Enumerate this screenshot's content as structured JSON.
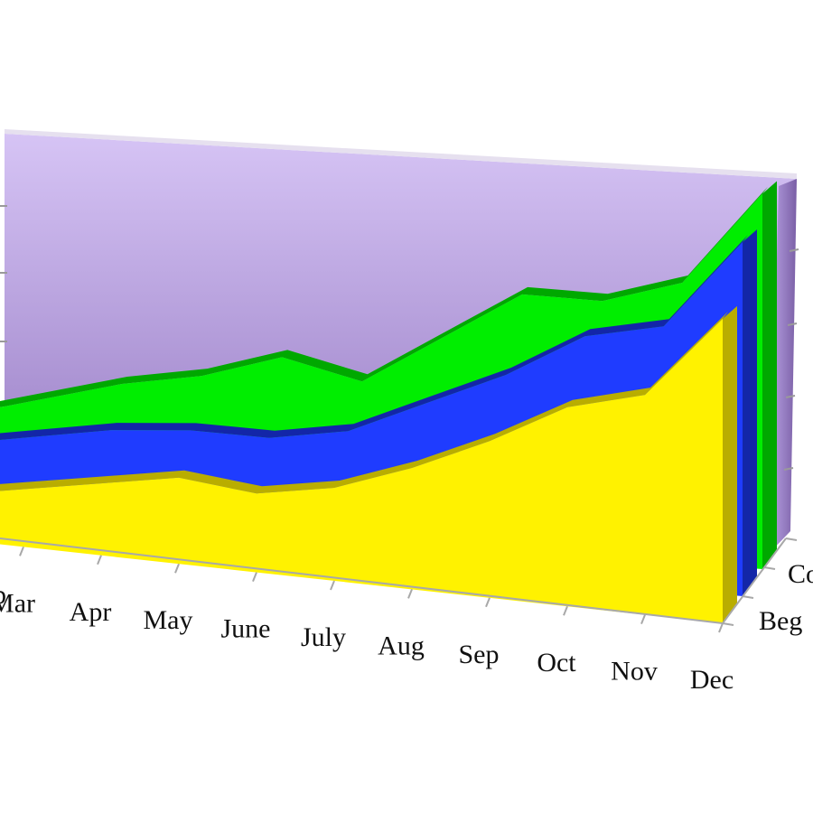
{
  "chart_data": {
    "type": "area",
    "style": "3d",
    "categories": [
      "Feb",
      "Mar",
      "Apr",
      "May",
      "June",
      "July",
      "Aug",
      "Sep",
      "Oct",
      "Nov",
      "Dec"
    ],
    "visible_category_labels": [
      "p",
      "Mar",
      "Apr",
      "May",
      "June",
      "July",
      "Aug",
      "Sep",
      "Oct",
      "Nov",
      "Dec"
    ],
    "depth_labels": [
      "Beg",
      "Co"
    ],
    "ylim": [
      0,
      11
    ],
    "grid": false,
    "legend": "none",
    "series": [
      {
        "label_key": "Beg",
        "color": "#fff200",
        "values": [
          1.2,
          1.6,
          2.0,
          2.4,
          2.2,
          2.6,
          3.4,
          4.4,
          5.6,
          6.2,
          8.6
        ]
      },
      {
        "label_key": "",
        "color": "#1f3cff",
        "values": [
          2.2,
          2.6,
          3.0,
          3.2,
          3.2,
          3.6,
          4.6,
          5.6,
          6.9,
          7.4,
          10.0
        ]
      },
      {
        "label_key": "Co",
        "color": "#00ee00",
        "values": [
          2.6,
          3.2,
          3.8,
          4.2,
          4.9,
          4.4,
          5.8,
          7.2,
          7.2,
          7.9,
          10.6
        ]
      }
    ],
    "wall_color_top": "#d6c4f5",
    "wall_color_bottom": "#8f73bd"
  }
}
